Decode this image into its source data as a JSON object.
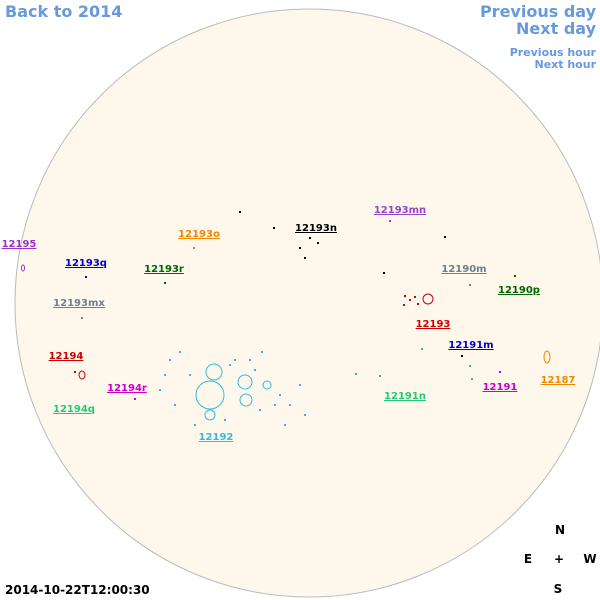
{
  "navigation": {
    "back": "Back to 2014",
    "previous_day": "Previous day",
    "next_day": "Next day",
    "previous_hour": "Previous hour",
    "next_hour": "Next hour"
  },
  "regions": [
    {
      "label": "12195"
    },
    {
      "label": "12193q"
    },
    {
      "label": "12193r"
    },
    {
      "label": "12193mx"
    },
    {
      "label": "12194"
    },
    {
      "label": "12194r"
    },
    {
      "label": "12194q"
    },
    {
      "label": "12192"
    },
    {
      "label": "12193o"
    },
    {
      "label": "12193n"
    },
    {
      "label": "12193mn"
    },
    {
      "label": "12190m"
    },
    {
      "label": "12190p"
    },
    {
      "label": "12193"
    },
    {
      "label": "12191m"
    },
    {
      "label": "12191n"
    },
    {
      "label": "12191"
    },
    {
      "label": "12187"
    }
  ],
  "timestamp": "2014-10-22T12:00:30",
  "compass": {
    "north": "N",
    "east": "E",
    "center": "+",
    "west": "W",
    "south": "S"
  }
}
